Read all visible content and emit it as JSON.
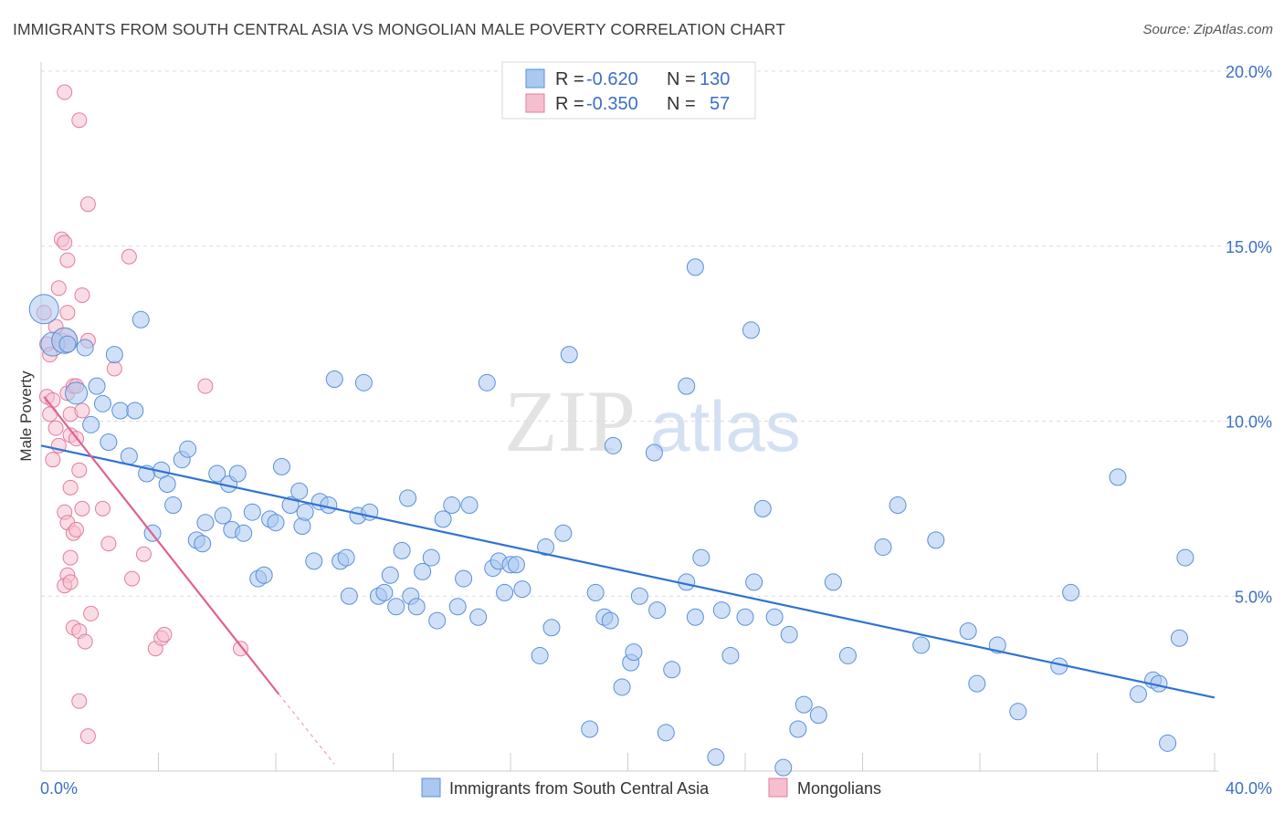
{
  "title": "IMMIGRANTS FROM SOUTH CENTRAL ASIA VS MONGOLIAN MALE POVERTY CORRELATION CHART",
  "source": "Source: ZipAtlas.com",
  "watermark": {
    "zip": "ZIP",
    "atlas": "atlas"
  },
  "colors": {
    "blue_fill": "#aac8f0",
    "blue_stroke": "#5b8fd8",
    "blue_line": "#2f73d2",
    "pink_fill": "#f6bfd0",
    "pink_stroke": "#e27d9e",
    "pink_line": "#e0628e",
    "grid": "#dcdcdc",
    "tick_text": "#3c6fc8"
  },
  "legend": {
    "rows": [
      {
        "r_label": "R = ",
        "r_value": "-0.620",
        "n_label": "N = ",
        "n_value": "130"
      },
      {
        "r_label": "R = ",
        "r_value": "-0.350",
        "n_label": "N = ",
        "n_value": "57"
      }
    ]
  },
  "chart_data": {
    "type": "scatter",
    "title": "IMMIGRANTS FROM SOUTH CENTRAL ASIA VS MONGOLIAN MALE POVERTY CORRELATION CHART",
    "xlabel": "",
    "ylabel": "Male Poverty",
    "xlim": [
      0,
      40
    ],
    "ylim": [
      0,
      20
    ],
    "x_tick_labels": [
      "0.0%",
      "40.0%"
    ],
    "y_tick_labels": [
      "5.0%",
      "10.0%",
      "15.0%",
      "20.0%"
    ],
    "y_ticks": [
      5,
      10,
      15,
      20
    ],
    "grid": true,
    "legend_position": "top-center",
    "series": [
      {
        "name": "Immigrants from South Central Asia",
        "color": "#aac8f0",
        "r": -0.62,
        "n": 130,
        "trend": {
          "x": [
            0,
            40
          ],
          "y": [
            9.3,
            2.1
          ]
        },
        "points": [
          [
            0.1,
            13.2
          ],
          [
            0.4,
            12.2
          ],
          [
            0.8,
            12.3
          ],
          [
            1.5,
            12.1
          ],
          [
            0.9,
            12.2
          ],
          [
            1.2,
            10.8
          ],
          [
            1.9,
            11.0
          ],
          [
            1.7,
            9.9
          ],
          [
            2.1,
            10.5
          ],
          [
            2.7,
            10.3
          ],
          [
            3.2,
            10.3
          ],
          [
            3.4,
            12.9
          ],
          [
            2.5,
            11.9
          ],
          [
            2.3,
            9.4
          ],
          [
            3.0,
            9.0
          ],
          [
            3.6,
            8.5
          ],
          [
            4.1,
            8.6
          ],
          [
            4.3,
            8.2
          ],
          [
            4.8,
            8.9
          ],
          [
            5.0,
            9.2
          ],
          [
            4.5,
            7.6
          ],
          [
            3.8,
            6.8
          ],
          [
            5.3,
            6.6
          ],
          [
            5.5,
            6.5
          ],
          [
            5.6,
            7.1
          ],
          [
            6.0,
            8.5
          ],
          [
            6.2,
            7.3
          ],
          [
            6.4,
            8.2
          ],
          [
            6.5,
            6.9
          ],
          [
            6.7,
            8.5
          ],
          [
            6.9,
            6.8
          ],
          [
            7.2,
            7.4
          ],
          [
            7.4,
            5.5
          ],
          [
            7.6,
            5.6
          ],
          [
            7.8,
            7.2
          ],
          [
            8.0,
            7.1
          ],
          [
            8.2,
            8.7
          ],
          [
            8.5,
            7.6
          ],
          [
            8.8,
            8.0
          ],
          [
            8.9,
            7.0
          ],
          [
            9.0,
            7.4
          ],
          [
            9.3,
            6.0
          ],
          [
            9.5,
            7.7
          ],
          [
            9.8,
            7.6
          ],
          [
            10.0,
            11.2
          ],
          [
            10.2,
            6.0
          ],
          [
            10.4,
            6.1
          ],
          [
            10.5,
            5.0
          ],
          [
            10.8,
            7.3
          ],
          [
            11.0,
            11.1
          ],
          [
            11.2,
            7.4
          ],
          [
            11.5,
            5.0
          ],
          [
            11.7,
            5.1
          ],
          [
            11.9,
            5.6
          ],
          [
            12.1,
            4.7
          ],
          [
            12.3,
            6.3
          ],
          [
            12.5,
            7.8
          ],
          [
            12.6,
            5.0
          ],
          [
            12.8,
            4.7
          ],
          [
            13.0,
            5.7
          ],
          [
            13.3,
            6.1
          ],
          [
            13.5,
            4.3
          ],
          [
            13.7,
            7.2
          ],
          [
            14.0,
            7.6
          ],
          [
            14.2,
            4.7
          ],
          [
            14.4,
            5.5
          ],
          [
            14.6,
            7.6
          ],
          [
            14.9,
            4.4
          ],
          [
            15.2,
            11.1
          ],
          [
            15.4,
            5.8
          ],
          [
            15.6,
            6.0
          ],
          [
            15.8,
            5.1
          ],
          [
            16.0,
            5.9
          ],
          [
            16.2,
            5.9
          ],
          [
            16.4,
            5.2
          ],
          [
            17.0,
            3.3
          ],
          [
            17.2,
            6.4
          ],
          [
            17.4,
            4.1
          ],
          [
            17.8,
            6.8
          ],
          [
            18.0,
            11.9
          ],
          [
            18.7,
            1.2
          ],
          [
            18.9,
            5.1
          ],
          [
            19.2,
            4.4
          ],
          [
            19.4,
            4.3
          ],
          [
            19.5,
            9.3
          ],
          [
            19.8,
            2.4
          ],
          [
            20.1,
            3.1
          ],
          [
            20.2,
            3.4
          ],
          [
            20.4,
            5.0
          ],
          [
            20.9,
            9.1
          ],
          [
            21.0,
            4.6
          ],
          [
            21.3,
            1.1
          ],
          [
            21.5,
            2.9
          ],
          [
            22.0,
            5.4
          ],
          [
            22.3,
            4.4
          ],
          [
            22.5,
            6.1
          ],
          [
            23.0,
            0.4
          ],
          [
            23.2,
            4.6
          ],
          [
            23.5,
            3.3
          ],
          [
            24.0,
            4.4
          ],
          [
            24.3,
            5.4
          ],
          [
            24.6,
            7.5
          ],
          [
            25.0,
            4.4
          ],
          [
            25.3,
            0.1
          ],
          [
            25.5,
            3.9
          ],
          [
            25.8,
            1.2
          ],
          [
            26.0,
            1.9
          ],
          [
            26.5,
            1.6
          ],
          [
            27.0,
            5.4
          ],
          [
            27.5,
            3.3
          ],
          [
            22.0,
            11.0
          ],
          [
            22.3,
            14.4
          ],
          [
            24.2,
            12.6
          ],
          [
            28.7,
            6.4
          ],
          [
            29.2,
            7.6
          ],
          [
            30.0,
            3.6
          ],
          [
            30.5,
            6.6
          ],
          [
            31.6,
            4.0
          ],
          [
            31.9,
            2.5
          ],
          [
            32.6,
            3.6
          ],
          [
            33.3,
            1.7
          ],
          [
            34.7,
            3.0
          ],
          [
            35.1,
            5.1
          ],
          [
            36.7,
            8.4
          ],
          [
            37.4,
            2.2
          ],
          [
            37.9,
            2.6
          ],
          [
            38.1,
            2.5
          ],
          [
            38.4,
            0.8
          ],
          [
            38.8,
            3.8
          ],
          [
            39.0,
            6.1
          ]
        ]
      },
      {
        "name": "Mongolians",
        "color": "#f6bfd0",
        "r": -0.35,
        "n": 57,
        "trend": {
          "x": [
            0.1,
            8.1
          ],
          "y": [
            10.7,
            2.2
          ]
        },
        "trend_dashed": {
          "x": [
            8.1,
            10.0
          ],
          "y": [
            2.2,
            0.2
          ]
        },
        "points": [
          [
            0.1,
            13.1
          ],
          [
            0.2,
            12.2
          ],
          [
            0.3,
            11.9
          ],
          [
            0.2,
            10.7
          ],
          [
            0.4,
            10.6
          ],
          [
            0.3,
            10.2
          ],
          [
            0.5,
            9.8
          ],
          [
            0.6,
            9.3
          ],
          [
            0.4,
            8.9
          ],
          [
            0.7,
            15.2
          ],
          [
            0.8,
            15.1
          ],
          [
            0.6,
            13.8
          ],
          [
            0.9,
            14.6
          ],
          [
            0.9,
            13.1
          ],
          [
            0.7,
            12.3
          ],
          [
            0.8,
            12.3
          ],
          [
            0.9,
            10.8
          ],
          [
            1.0,
            10.2
          ],
          [
            1.1,
            11.0
          ],
          [
            1.0,
            9.6
          ],
          [
            1.2,
            9.5
          ],
          [
            1.3,
            8.6
          ],
          [
            1.0,
            8.1
          ],
          [
            1.4,
            10.3
          ],
          [
            0.8,
            7.4
          ],
          [
            0.9,
            7.1
          ],
          [
            1.1,
            6.8
          ],
          [
            1.2,
            6.9
          ],
          [
            1.4,
            7.5
          ],
          [
            1.0,
            6.1
          ],
          [
            0.9,
            5.6
          ],
          [
            0.8,
            5.3
          ],
          [
            1.0,
            5.4
          ],
          [
            1.1,
            4.1
          ],
          [
            1.3,
            4.0
          ],
          [
            1.5,
            3.7
          ],
          [
            1.3,
            2.0
          ],
          [
            1.6,
            1.0
          ],
          [
            1.7,
            4.5
          ],
          [
            2.1,
            7.5
          ],
          [
            2.3,
            6.5
          ],
          [
            2.5,
            11.5
          ],
          [
            3.0,
            14.7
          ],
          [
            3.1,
            5.5
          ],
          [
            3.5,
            6.2
          ],
          [
            3.9,
            3.5
          ],
          [
            4.1,
            3.8
          ],
          [
            4.2,
            3.9
          ],
          [
            5.6,
            11.0
          ],
          [
            6.8,
            3.5
          ],
          [
            0.8,
            19.4
          ],
          [
            1.3,
            18.6
          ],
          [
            1.6,
            16.2
          ],
          [
            1.4,
            13.6
          ],
          [
            1.6,
            12.3
          ],
          [
            0.5,
            12.7
          ],
          [
            1.2,
            11.0
          ]
        ]
      }
    ]
  },
  "bottom_legend": {
    "blue_label": "Immigrants from South Central Asia",
    "pink_label": "Mongolians"
  }
}
